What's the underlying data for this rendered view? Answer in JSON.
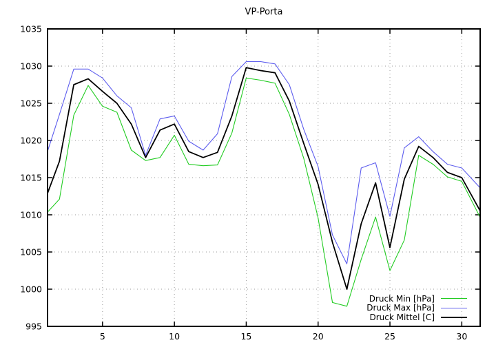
{
  "title": "VP-Porta",
  "chart_data": {
    "type": "line",
    "title": "VP-Porta",
    "xlabel": "",
    "ylabel": "",
    "x": [
      1,
      2,
      3,
      4,
      5,
      6,
      7,
      8,
      9,
      10,
      11,
      12,
      13,
      14,
      15,
      16,
      17,
      18,
      19,
      20,
      21,
      22,
      23,
      24,
      25,
      26,
      27,
      28,
      29,
      30,
      31
    ],
    "xticks": [
      5,
      10,
      15,
      20,
      25,
      30
    ],
    "yticks": [
      995,
      1000,
      1005,
      1010,
      1015,
      1020,
      1025,
      1030,
      1035
    ],
    "ylim": [
      995,
      1035
    ],
    "grid": true,
    "legend_position": "bottom-right",
    "series": [
      {
        "name": "Druck Min [hPa]",
        "color": "#22cc22",
        "values": [
          1010.0,
          1012.1,
          1023.4,
          1027.4,
          1024.6,
          1023.8,
          1018.7,
          1017.3,
          1017.7,
          1020.7,
          1016.8,
          1016.6,
          1016.7,
          1021.0,
          1028.4,
          1028.1,
          1027.7,
          1023.5,
          1017.6,
          1009.6,
          998.2,
          997.7,
          1004.0,
          1009.7,
          1002.5,
          1006.6,
          1018.0,
          1016.8,
          1015.1,
          1014.5,
          1010.7
        ]
      },
      {
        "name": "Druck Max [hPa]",
        "color": "#5c5cee",
        "values": [
          1017.5,
          1023.5,
          1029.6,
          1029.6,
          1028.4,
          1026.0,
          1024.4,
          1018.0,
          1022.9,
          1023.3,
          1019.9,
          1018.7,
          1020.9,
          1028.6,
          1030.6,
          1030.6,
          1030.3,
          1027.5,
          1021.5,
          1016.5,
          1007.3,
          1003.4,
          1016.3,
          1017.0,
          1009.8,
          1019.0,
          1020.5,
          1018.5,
          1016.8,
          1016.3,
          1014.2
        ]
      },
      {
        "name": "Druck Mittel [C]",
        "color": "#000000",
        "values": [
          1012.0,
          1017.2,
          1027.5,
          1028.3,
          1026.6,
          1025.0,
          1022.2,
          1017.7,
          1021.4,
          1022.2,
          1018.5,
          1017.7,
          1018.4,
          1023.3,
          1029.8,
          1029.4,
          1029.1,
          1025.3,
          1019.6,
          1014.1,
          1006.3,
          1000.0,
          1008.8,
          1014.3,
          1005.6,
          1014.8,
          1019.2,
          1017.7,
          1015.7,
          1015.0,
          1011.5
        ]
      }
    ]
  }
}
